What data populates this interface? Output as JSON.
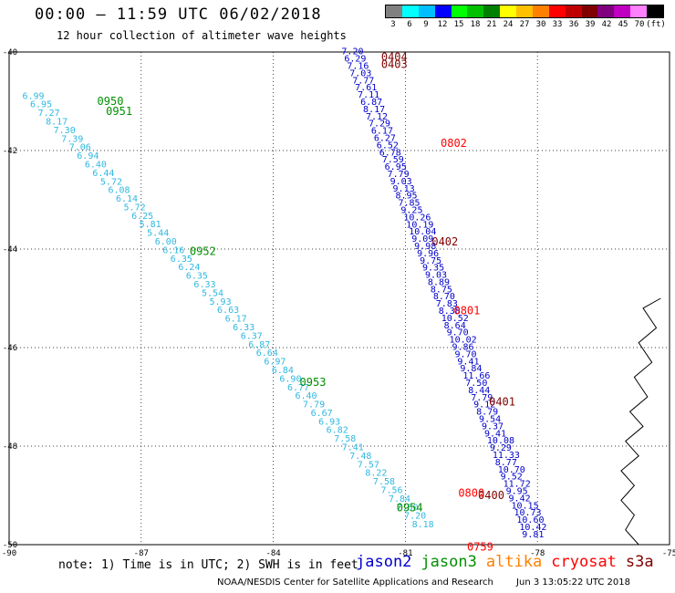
{
  "header": {
    "title": "00:00 – 11:59 UTC 06/02/2018",
    "subtitle": "12 hour collection of altimeter wave heights"
  },
  "colorbar": {
    "colors": [
      "#808080",
      "#00ffff",
      "#00bfff",
      "#0000ff",
      "#00ff00",
      "#00c000",
      "#008000",
      "#ffff00",
      "#ffc000",
      "#ff8000",
      "#ff0000",
      "#c00000",
      "#800000",
      "#800080",
      "#c000c0",
      "#ff80ff",
      "#000000"
    ],
    "labels": [
      "3",
      "6",
      "9",
      "12",
      "15",
      "18",
      "21",
      "24",
      "27",
      "30",
      "33",
      "36",
      "39",
      "42",
      "45",
      "70",
      "(ft)"
    ]
  },
  "map": {
    "lon_range": [
      -90,
      -75
    ],
    "lat_range": [
      -50,
      -40
    ],
    "lon_ticks": [
      {
        "value": -90,
        "label": "-90"
      },
      {
        "value": -87,
        "label": "-87"
      },
      {
        "value": -84,
        "label": "-84"
      },
      {
        "value": -81,
        "label": "-81"
      },
      {
        "value": -78,
        "label": "-78"
      },
      {
        "value": -75,
        "label": "-75"
      }
    ],
    "lat_ticks": [
      {
        "value": -40,
        "label": "-40"
      },
      {
        "value": -42,
        "label": "-42"
      },
      {
        "value": -44,
        "label": "-44"
      },
      {
        "value": -46,
        "label": "-46"
      },
      {
        "value": -48,
        "label": "-48"
      },
      {
        "value": -50,
        "label": "-50"
      }
    ],
    "tracks": [
      {
        "satellite": "jason3",
        "color": "#2fb8e0",
        "start": [
          -89.7,
          -40.95
        ],
        "end": [
          -80.85,
          -49.65
        ],
        "values": [
          "6.99",
          "6.95",
          "7.27",
          "8.17",
          "7.30",
          "7.39",
          "7.06",
          "6.94",
          "6.40",
          "6.44",
          "5.72",
          "6.08",
          "6.14",
          "5.72",
          "6.25",
          "5.81",
          "5.44",
          "6.00",
          "6.16",
          "6.35",
          "6.24",
          "6.35",
          "6.33",
          "5.54",
          "5.93",
          "6.63",
          "6.17",
          "6.33",
          "6.37",
          "6.87",
          "6.64",
          "6.97",
          "6.84",
          "6.90",
          "6.77",
          "6.40",
          "7.79",
          "6.67",
          "6.93",
          "6.82",
          "7.58",
          "7.41",
          "7.48",
          "7.57",
          "8.22",
          "7.58",
          "7.56",
          "7.84",
          "7.50",
          "7.20",
          "8.18"
        ],
        "time_labels": [
          {
            "text": "0950",
            "at": [
              -88.0,
              -41.0
            ],
            "color": "#009000"
          },
          {
            "text": "0951",
            "at": [
              -87.8,
              -41.2
            ],
            "color": "#009000"
          },
          {
            "text": "0952",
            "at": [
              -85.9,
              -44.05
            ],
            "color": "#009000"
          },
          {
            "text": "0953",
            "at": [
              -83.4,
              -46.7
            ],
            "color": "#009000"
          },
          {
            "text": "0954",
            "at": [
              -81.2,
              -49.25
            ],
            "color": "#009000"
          }
        ]
      },
      {
        "satellite": "jason2",
        "color": "#0000cc",
        "start": [
          -82.45,
          -40.05
        ],
        "end": [
          -78.35,
          -49.85
        ],
        "values": [
          "7.20",
          "6.29",
          "7.16",
          "7.03",
          "7.77",
          "7.61",
          "7.11",
          "6.87",
          "8.17",
          "7.12",
          "7.29",
          "6.17",
          "6.27",
          "6.52",
          "6.78",
          "7.59",
          "6.95",
          "7.79",
          "9.03",
          "9.13",
          "8.95",
          "7.85",
          "9.25",
          "10.26",
          "10.19",
          "10.04",
          "9.09",
          "9.98",
          "9.96",
          "9.75",
          "9.35",
          "9.03",
          "8.89",
          "8.75",
          "8.70",
          "7.83",
          "8.38",
          "10.52",
          "8.64",
          "9.70",
          "10.02",
          "9.86",
          "9.70",
          "9.41",
          "9.84",
          "11.66",
          "7.50",
          "8.44",
          "7.79",
          "9.12",
          "8.79",
          "9.54",
          "9.37",
          "9.41",
          "10.08",
          "9.29",
          "11.33",
          "8.77",
          "10.70",
          "9.52",
          "11.72",
          "9.95",
          "9.42",
          "10.15",
          "10.73",
          "10.60",
          "10.42",
          "9.81"
        ],
        "time_labels": [
          {
            "text": "0404",
            "at": [
              -81.55,
              -40.1
            ],
            "color": "#800000"
          },
          {
            "text": "0403",
            "at": [
              -81.55,
              -40.25
            ],
            "color": "#800000"
          },
          {
            "text": "0402",
            "at": [
              -80.4,
              -43.85
            ],
            "color": "#800000"
          },
          {
            "text": "0401",
            "at": [
              -79.1,
              -47.1
            ],
            "color": "#800000"
          },
          {
            "text": "0400",
            "at": [
              -79.35,
              -49.0
            ],
            "color": "#800000"
          }
        ]
      },
      {
        "satellite": "cryosat",
        "color": "#ff0000",
        "time_labels": [
          {
            "text": "0802",
            "at": [
              -80.2,
              -41.85
            ],
            "color": "#ff0000"
          },
          {
            "text": "0801",
            "at": [
              -79.9,
              -45.25
            ],
            "color": "#ff0000"
          },
          {
            "text": "0800",
            "at": [
              -79.8,
              -48.95
            ],
            "color": "#ff0000"
          },
          {
            "text": "0759",
            "at": [
              -79.6,
              -50.05
            ],
            "color": "#ff0000"
          }
        ]
      }
    ],
    "coastline": [
      [
        -75.2,
        -45.0
      ],
      [
        -75.6,
        -45.2
      ],
      [
        -75.3,
        -45.6
      ],
      [
        -75.7,
        -45.9
      ],
      [
        -75.4,
        -46.3
      ],
      [
        -75.8,
        -46.6
      ],
      [
        -75.5,
        -47.0
      ],
      [
        -75.9,
        -47.3
      ],
      [
        -75.6,
        -47.6
      ],
      [
        -76.0,
        -47.9
      ],
      [
        -75.7,
        -48.2
      ],
      [
        -76.1,
        -48.5
      ],
      [
        -75.8,
        -48.8
      ],
      [
        -76.1,
        -49.1
      ],
      [
        -75.8,
        -49.4
      ],
      [
        -76.0,
        -49.7
      ],
      [
        -75.7,
        -50.0
      ]
    ]
  },
  "note": "note: 1) Time is in UTC; 2) SWH is in feet",
  "legend": [
    {
      "name": "jason2",
      "color": "#0000cc"
    },
    {
      "name": "jason3",
      "color": "#009000"
    },
    {
      "name": "altika",
      "color": "#ff8000"
    },
    {
      "name": "cryosat",
      "color": "#ff0000"
    },
    {
      "name": "s3a",
      "color": "#800000"
    }
  ],
  "footer": {
    "credit": "NOAA/NESDIS Center for Satellite Applications and Research",
    "timestamp": "Jun  3 13:05:22 UTC 2018"
  }
}
